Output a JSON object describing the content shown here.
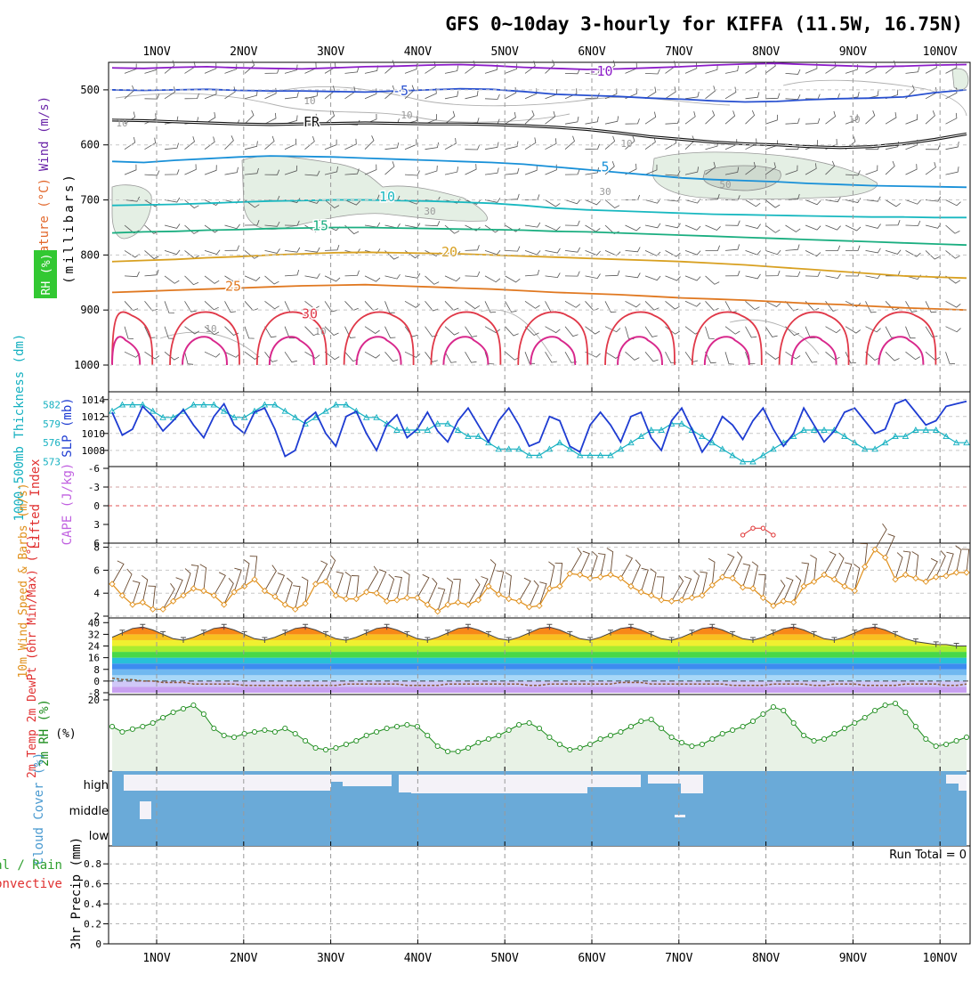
{
  "title": "GFS 0~10day 3-hourly for KIFFA (11.5W, 16.75N)",
  "colors": {
    "wind_label": "#9b3fd6",
    "temp_label": "#e2672b",
    "rh_label_bg": "#32c832",
    "thickness": "#14b0c0",
    "slp": "#1e3cd2",
    "li": "#e03030",
    "cape": "#c060e0",
    "wind10": "#e0901c",
    "rh2m": "#1c8c1c",
    "cloud": "#6aaad8",
    "cloud_label": "#4a9ad0",
    "precip_total": "#30a030",
    "precip_conv": "#e03030"
  },
  "chart_data": [
    {
      "id": "upper-air",
      "type": "contour",
      "ylabel_parts": {
        "wind": "Wind (m/s)",
        "temp": "Temperature (°C)",
        "rh": "RH (%)",
        "mb": "(millibars)"
      },
      "x_ticks": [
        "1NOV",
        "2NOV",
        "3NOV",
        "4NOV",
        "5NOV",
        "6NOV",
        "7NOV",
        "8NOV",
        "9NOV",
        "10NOV"
      ],
      "y_ticks": [
        "500",
        "600",
        "700",
        "800",
        "900",
        "1000"
      ],
      "y_tick_values": [
        500,
        600,
        700,
        800,
        900,
        1000
      ],
      "ylim": [
        450,
        1000
      ],
      "temperature_contours": [
        {
          "label": "-10",
          "color": "#8c1cc8",
          "levels": [
            460,
            461,
            459,
            458,
            460,
            461,
            462,
            460,
            458,
            457,
            455,
            454,
            456,
            459,
            461,
            463,
            462,
            460,
            458,
            455,
            453,
            452,
            454,
            456,
            458,
            457,
            455,
            454
          ]
        },
        {
          "label": "-5",
          "color": "#2850d0",
          "levels": [
            500,
            501,
            500,
            499,
            501,
            502,
            502,
            503,
            504,
            502,
            500,
            498,
            499,
            503,
            508,
            510,
            512,
            515,
            517,
            520,
            522,
            521,
            518,
            516,
            515,
            513,
            505,
            500
          ]
        },
        {
          "label": "FR",
          "color": "#111111",
          "levels": [
            555,
            556,
            558,
            560,
            562,
            563,
            562,
            561,
            560,
            561,
            562,
            562,
            563,
            565,
            568,
            572,
            578,
            585,
            590,
            595,
            598,
            600,
            603,
            605,
            603,
            598,
            590,
            580
          ]
        },
        {
          "label": "5",
          "color": "#1890d8",
          "levels": [
            630,
            632,
            628,
            625,
            622,
            620,
            621,
            622,
            624,
            626,
            628,
            630,
            632,
            635,
            640,
            645,
            650,
            655,
            660,
            663,
            665,
            667,
            670,
            672,
            674,
            675,
            676,
            677
          ]
        },
        {
          "label": "10",
          "color": "#18b8c0",
          "levels": [
            710,
            709,
            708,
            706,
            704,
            702,
            701,
            700,
            700,
            701,
            702,
            704,
            706,
            710,
            715,
            718,
            720,
            722,
            724,
            726,
            727,
            728,
            729,
            730,
            731,
            731,
            732,
            732
          ]
        },
        {
          "label": "15",
          "color": "#1aae80",
          "levels": [
            760,
            758,
            757,
            755,
            754,
            752,
            751,
            750,
            750,
            751,
            752,
            753,
            754,
            755,
            757,
            758,
            760,
            762,
            764,
            766,
            768,
            770,
            772,
            774,
            776,
            778,
            780,
            782
          ]
        },
        {
          "label": "20",
          "color": "#d8a020",
          "levels": [
            812,
            810,
            808,
            805,
            803,
            800,
            798,
            796,
            795,
            796,
            797,
            798,
            800,
            802,
            804,
            806,
            808,
            810,
            812,
            815,
            818,
            822,
            826,
            830,
            834,
            838,
            840,
            842
          ]
        },
        {
          "label": "25",
          "color": "#e07820",
          "levels": [
            868,
            866,
            864,
            862,
            860,
            858,
            856,
            855,
            854,
            856,
            858,
            860,
            862,
            865,
            868,
            870,
            872,
            875,
            878,
            880,
            882,
            885,
            888,
            890,
            893,
            896,
            898,
            900
          ]
        },
        {
          "label": "30",
          "color": "#e03848",
          "levels": [
            910,
            908,
            912,
            910,
            908,
            906,
            910,
            908,
            906,
            910,
            908,
            906,
            910,
            908,
            906,
            910,
            908,
            906,
            910,
            908,
            906,
            910,
            908,
            906,
            910,
            908,
            906,
            910
          ]
        }
      ],
      "rh_contours": [
        "10",
        "30",
        "50"
      ]
    },
    {
      "id": "thickness-slp",
      "type": "line",
      "ylabel_left": "1000-500mb Thickness (dm)",
      "ylabel_right": "SLP (mb)",
      "left_ticks": [
        "582",
        "579",
        "576",
        "573"
      ],
      "left_tick_values": [
        582,
        579,
        576,
        573
      ],
      "right_ticks": [
        "1014",
        "1012",
        "1010",
        "1008"
      ],
      "right_tick_values": [
        1014,
        1012,
        1010,
        1008
      ],
      "left_range": [
        572.5,
        583.5
      ],
      "right_range": [
        1006.3,
        1014.5
      ],
      "series": [
        {
          "name": "Thickness",
          "axis": "left",
          "values": [
            581,
            582,
            582,
            582,
            581,
            580,
            580,
            581,
            582,
            582,
            582,
            581,
            580,
            580,
            581,
            582,
            582,
            581,
            580,
            579,
            580,
            581,
            582,
            582,
            581,
            580,
            580,
            579,
            578,
            578,
            578,
            578,
            579,
            579,
            578,
            577,
            577,
            576,
            575,
            575,
            575,
            574,
            574,
            575,
            576,
            575,
            574,
            574,
            574,
            574,
            575,
            576,
            577,
            578,
            578,
            579,
            579,
            578,
            577,
            576,
            575,
            574,
            573,
            573,
            574,
            575,
            576,
            577,
            578,
            578,
            578,
            578,
            577,
            576,
            575,
            575,
            576,
            577,
            577,
            578,
            578,
            578,
            577,
            576,
            576
          ]
        },
        {
          "name": "SLP",
          "axis": "right",
          "values": [
            1012.5,
            1009.8,
            1010.5,
            1013.2,
            1012.0,
            1010.3,
            1011.5,
            1012.8,
            1011.0,
            1009.5,
            1012.0,
            1013.5,
            1011.0,
            1010.0,
            1012.5,
            1013.0,
            1010.5,
            1007.3,
            1008.0,
            1011.5,
            1012.5,
            1010.0,
            1008.5,
            1012.0,
            1012.6,
            1010.0,
            1008.0,
            1011.0,
            1012.2,
            1009.5,
            1010.5,
            1012.5,
            1010.3,
            1009.0,
            1011.5,
            1013.0,
            1011.0,
            1009.0,
            1011.5,
            1013.0,
            1011.0,
            1008.5,
            1009.0,
            1012.0,
            1011.5,
            1008.5,
            1007.8,
            1011.0,
            1012.5,
            1011.0,
            1009.0,
            1012.0,
            1012.5,
            1009.5,
            1008.0,
            1011.5,
            1013.0,
            1010.5,
            1007.8,
            1009.5,
            1012.0,
            1011.0,
            1009.3,
            1011.5,
            1013.0,
            1010.5,
            1008.5,
            1010.0,
            1013.0,
            1011.0,
            1009.0,
            1010.3,
            1012.5,
            1013.0,
            1011.5,
            1010.0,
            1010.5,
            1013.5,
            1014.0,
            1012.5,
            1011.0,
            1011.5,
            1013.2,
            1013.5,
            1013.8
          ]
        }
      ]
    },
    {
      "id": "lifted-cape",
      "type": "line",
      "ylabel_left": "Lifted Index",
      "ylabel_right": "CAPE (J/kg)",
      "y_ticks": [
        "-6",
        "-3",
        "0",
        "3",
        "6"
      ],
      "y_tick_values": [
        -6,
        -3,
        0,
        3,
        6
      ],
      "ylim": [
        -6,
        6
      ],
      "series": [
        {
          "name": "CAPE",
          "x_index": [
            62,
            63,
            64,
            65
          ],
          "values": [
            4.7,
            3.6,
            3.6,
            4.7
          ]
        }
      ]
    },
    {
      "id": "wind10m",
      "type": "line",
      "ylabel": "10m Wind Speed & Barbs (m/s)",
      "y_ticks": [
        "2",
        "4",
        "6",
        "8"
      ],
      "y_tick_values": [
        2,
        4,
        6,
        8
      ],
      "ylim": [
        2,
        8.2
      ],
      "series": [
        {
          "name": "Speed",
          "values": [
            4.8,
            3.8,
            3.0,
            3.2,
            2.6,
            2.6,
            3.3,
            3.8,
            4.4,
            4.2,
            3.8,
            3.0,
            4.1,
            4.6,
            5.2,
            4.2,
            3.7,
            3.0,
            2.6,
            3.1,
            4.8,
            5.0,
            3.8,
            3.5,
            3.5,
            4.1,
            4.0,
            3.3,
            3.4,
            3.6,
            3.6,
            3.0,
            2.4,
            3.0,
            3.2,
            3.0,
            3.4,
            4.6,
            3.9,
            3.5,
            3.3,
            2.8,
            2.9,
            4.4,
            4.6,
            5.7,
            5.6,
            5.3,
            5.4,
            5.6,
            5.3,
            4.6,
            4.1,
            3.8,
            3.4,
            3.3,
            3.4,
            3.6,
            3.8,
            4.7,
            5.4,
            5.3,
            4.5,
            4.4,
            3.6,
            2.9,
            3.3,
            3.2,
            4.6,
            5.0,
            5.6,
            5.2,
            4.6,
            4.2,
            6.3,
            7.8,
            7.1,
            5.2,
            5.6,
            5.3,
            5.0,
            5.4,
            5.5,
            5.8,
            5.8
          ]
        }
      ]
    },
    {
      "id": "temp2m",
      "type": "area",
      "ylabel": "2m Temp 2m DewPt (6hr Min/Max) (°C)",
      "y_ticks": [
        "40",
        "32",
        "24",
        "16",
        "8",
        "0",
        "-8"
      ],
      "y_tick_values": [
        40,
        32,
        24,
        16,
        8,
        0,
        -8
      ],
      "ylim": [
        -8,
        42
      ],
      "series": [
        {
          "name": "2m Temp",
          "values": [
            30,
            33,
            36,
            37,
            35,
            32,
            29,
            28,
            30,
            33,
            36,
            37,
            35,
            32,
            29,
            28,
            30,
            33,
            36,
            37,
            35,
            32,
            29,
            28,
            30,
            33,
            36,
            37,
            35,
            32,
            29,
            28,
            30,
            33,
            36,
            37,
            35,
            32,
            29,
            28,
            30,
            33,
            36,
            37,
            35,
            32,
            29,
            28,
            30,
            33,
            36,
            37,
            35,
            32,
            29,
            28,
            30,
            33,
            36,
            37,
            35,
            32,
            29,
            28,
            30,
            33,
            36,
            37,
            35,
            32,
            29,
            28,
            30,
            33,
            36,
            37,
            35,
            32,
            29,
            27,
            26,
            25,
            25,
            24,
            24
          ]
        },
        {
          "name": "2m DewPt",
          "values": [
            2,
            1,
            1,
            0,
            0,
            -1,
            -1,
            -1,
            -2,
            -2,
            -2,
            -2,
            -2,
            -3,
            -3,
            -3,
            -3,
            -3,
            -3,
            -3,
            -3,
            -3,
            -3,
            -2,
            -2,
            -2,
            -2,
            -2,
            -2,
            -3,
            -3,
            -3,
            -3,
            -2,
            -2,
            -2,
            -2,
            -2,
            -2,
            -2,
            -2,
            -3,
            -3,
            -2,
            -2,
            -2,
            -2,
            -2,
            -2,
            -2,
            -1,
            -1,
            -1,
            -2,
            -2,
            -2,
            -2,
            -2,
            -2,
            -2,
            -2,
            -3,
            -3,
            -3,
            -3,
            -2,
            -2,
            -2,
            -2,
            -3,
            -3,
            -2,
            -2,
            -2,
            -3,
            -3,
            -3,
            -3,
            -2,
            -2,
            -2,
            -2,
            -3,
            -3,
            -2
          ]
        }
      ]
    },
    {
      "id": "rh2m",
      "type": "area",
      "ylabel": "2m RH (%)",
      "y_ticks": [
        "20"
      ],
      "y_tick_values": [
        20
      ],
      "ylim": [
        0,
        21
      ],
      "series": [
        {
          "name": "2m RH",
          "values": [
            12.5,
            11.0,
            11.8,
            12.5,
            13.5,
            15.0,
            16.5,
            17.5,
            18.5,
            16.0,
            12.0,
            10.0,
            9.5,
            10.5,
            11.0,
            11.5,
            11.0,
            12.0,
            10.5,
            8.5,
            6.5,
            6.0,
            6.5,
            7.5,
            8.5,
            10.0,
            11.0,
            12.0,
            12.5,
            13.0,
            12.5,
            10.0,
            7.0,
            5.5,
            5.5,
            6.5,
            8.0,
            9.0,
            10.0,
            11.5,
            13.0,
            13.5,
            12.0,
            9.5,
            7.5,
            6.0,
            6.5,
            7.5,
            9.0,
            10.0,
            11.0,
            12.5,
            14.0,
            14.5,
            12.0,
            9.5,
            8.0,
            7.0,
            7.5,
            9.0,
            10.5,
            11.5,
            12.5,
            14.0,
            16.0,
            18.0,
            17.0,
            13.5,
            10.0,
            8.5,
            9.0,
            10.5,
            12.0,
            13.5,
            15.0,
            17.0,
            18.5,
            19.0,
            16.5,
            12.5,
            9.0,
            7.0,
            7.5,
            8.5,
            9.5
          ]
        }
      ]
    },
    {
      "id": "cloud-cover",
      "type": "heatmap",
      "ylabel": "Cloud Cover (%)",
      "rows": [
        "high",
        "middle",
        "low"
      ]
    },
    {
      "id": "precip",
      "type": "bar",
      "ylabel_left": "Total / Rain",
      "ylabel_left2": "Convective",
      "ylabel": "3hr Precip (mm)",
      "y_ticks": [
        "0.8",
        "0.6",
        "0.4",
        "0.2",
        "0"
      ],
      "y_tick_values": [
        0.8,
        0.6,
        0.4,
        0.2,
        0
      ],
      "ylim": [
        0,
        0.98
      ],
      "run_total": "Run Total = 0",
      "values": []
    }
  ]
}
